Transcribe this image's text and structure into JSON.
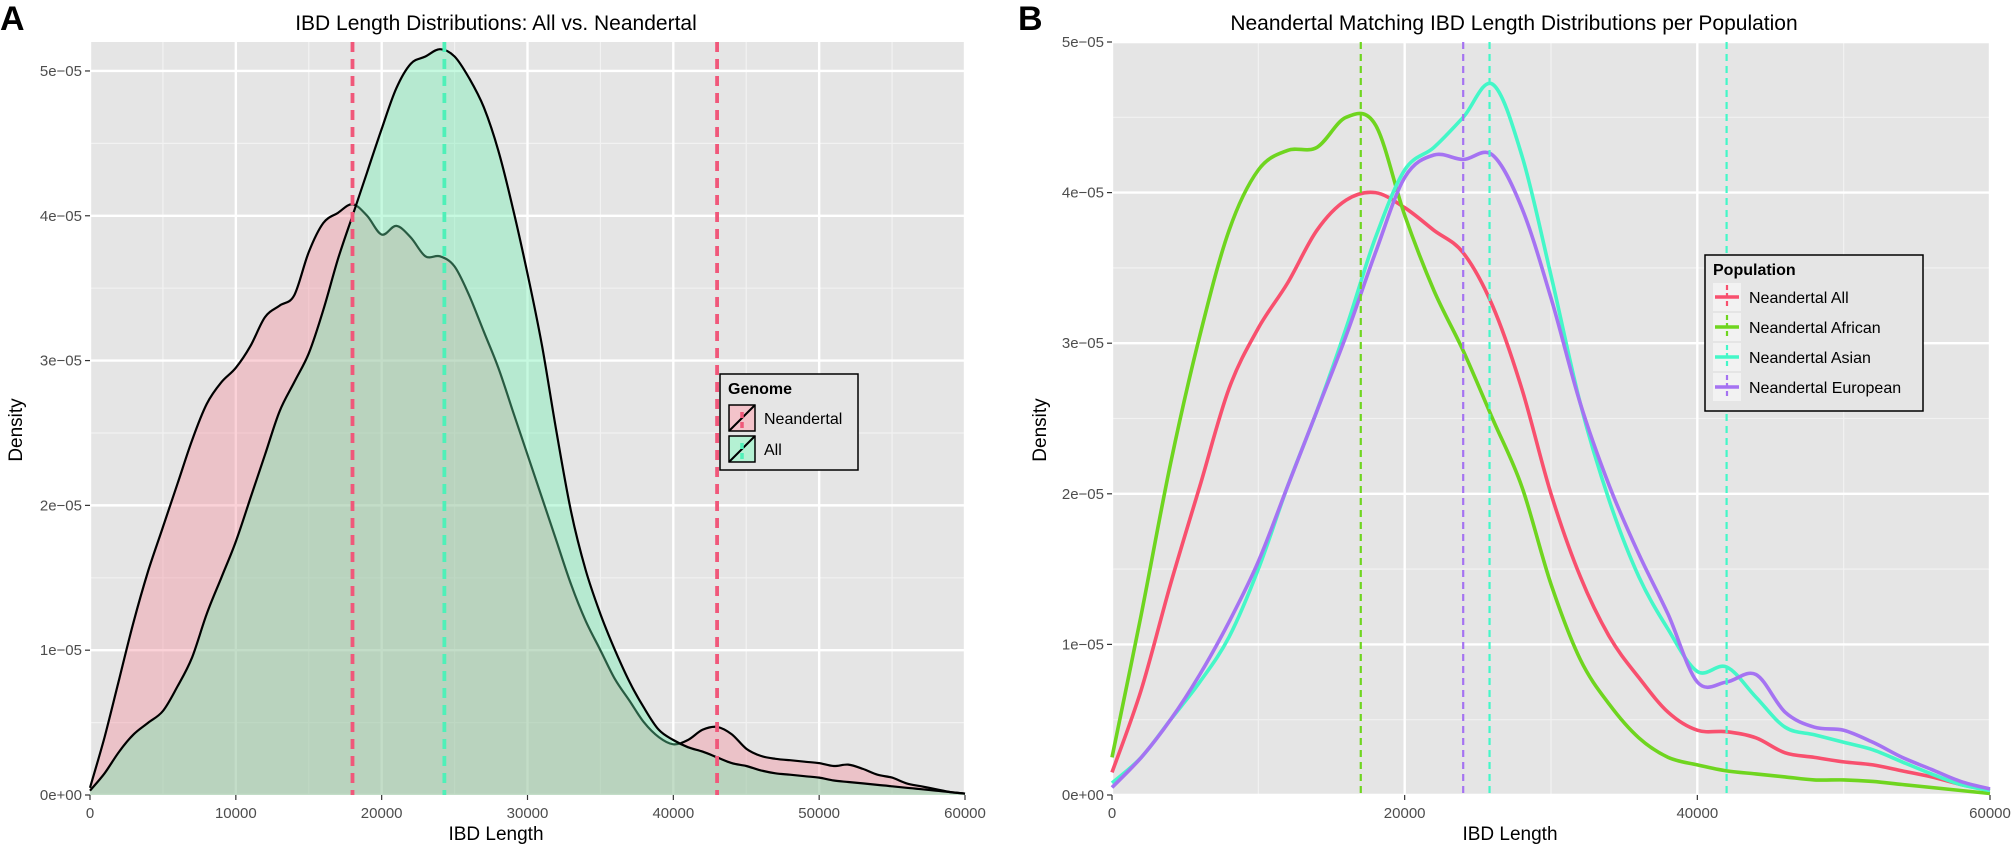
{
  "chart_data": [
    {
      "panel_label": "A",
      "type": "area",
      "title": "IBD Length Distributions: All vs. Neandertal",
      "xlabel": "IBD Length",
      "ylabel": "Density",
      "xlim": [
        0,
        60000
      ],
      "ylim": [
        0,
        5.2e-05
      ],
      "x_ticks": [
        0,
        10000,
        20000,
        30000,
        40000,
        50000,
        60000
      ],
      "x_tick_labels": [
        "0",
        "10000",
        "20000",
        "30000",
        "40000",
        "50000",
        "60000"
      ],
      "y_ticks": [
        0,
        1e-05,
        2e-05,
        3e-05,
        4e-05,
        5e-05
      ],
      "y_tick_labels": [
        "0e+00",
        "1e−05",
        "2e−05",
        "3e−05",
        "4e−05",
        "5e−05"
      ],
      "grid": true,
      "legend": {
        "title": "Genome",
        "position": "right"
      },
      "series": [
        {
          "name": "Neandertal",
          "color": "#f58a99",
          "x": [
            0,
            1000,
            2000,
            3000,
            4000,
            5000,
            6000,
            7000,
            8000,
            9000,
            10000,
            11000,
            12000,
            13000,
            14000,
            15000,
            16000,
            17000,
            18000,
            19000,
            20000,
            21000,
            22000,
            23000,
            24000,
            25000,
            26000,
            27000,
            28000,
            29000,
            30000,
            31000,
            32000,
            33000,
            34000,
            35000,
            36000,
            37000,
            38000,
            39000,
            40000,
            41000,
            42000,
            43000,
            44000,
            45000,
            46000,
            47000,
            48000,
            49000,
            50000,
            51000,
            52000,
            53000,
            54000,
            55000,
            56000,
            57000,
            58000,
            59000,
            60000
          ],
          "y": [
            5e-07,
            4e-06,
            8e-06,
            1.2e-05,
            1.55e-05,
            1.85e-05,
            2.15e-05,
            2.45e-05,
            2.7e-05,
            2.85e-05,
            2.95e-05,
            3.1e-05,
            3.3e-05,
            3.38e-05,
            3.45e-05,
            3.75e-05,
            3.95e-05,
            4.02e-05,
            4.08e-05,
            4e-05,
            3.87e-05,
            3.93e-05,
            3.85e-05,
            3.72e-05,
            3.72e-05,
            3.65e-05,
            3.45e-05,
            3.2e-05,
            2.95e-05,
            2.65e-05,
            2.35e-05,
            2.05e-05,
            1.75e-05,
            1.45e-05,
            1.2e-05,
            1e-05,
            8e-06,
            6.5e-06,
            5e-06,
            4e-06,
            3.5e-06,
            3.8e-06,
            4.5e-06,
            4.7e-06,
            4.2e-06,
            3.2e-06,
            2.7e-06,
            2.5e-06,
            2.4e-06,
            2.3e-06,
            2.2e-06,
            2e-06,
            2.1e-06,
            1.8e-06,
            1.4e-06,
            1.2e-06,
            8e-07,
            6e-07,
            4e-07,
            2e-07,
            1e-07
          ]
        },
        {
          "name": "All",
          "color": "#69f0ae",
          "x": [
            0,
            1000,
            2000,
            3000,
            4000,
            5000,
            6000,
            7000,
            8000,
            9000,
            10000,
            11000,
            12000,
            13000,
            14000,
            15000,
            16000,
            17000,
            18000,
            19000,
            20000,
            21000,
            22000,
            23000,
            24000,
            25000,
            26000,
            27000,
            28000,
            29000,
            30000,
            31000,
            32000,
            33000,
            34000,
            35000,
            36000,
            37000,
            38000,
            39000,
            40000,
            41000,
            42000,
            43000,
            44000,
            45000,
            46000,
            47000,
            48000,
            49000,
            50000,
            51000,
            52000,
            53000,
            54000,
            55000,
            56000,
            57000,
            58000,
            59000,
            60000
          ],
          "y": [
            3e-07,
            1.5e-06,
            3e-06,
            4.2e-06,
            5e-06,
            5.8e-06,
            7.5e-06,
            9.5e-06,
            1.25e-05,
            1.5e-05,
            1.75e-05,
            2.05e-05,
            2.35e-05,
            2.65e-05,
            2.85e-05,
            3.05e-05,
            3.35e-05,
            3.7e-05,
            4e-05,
            4.3e-05,
            4.6e-05,
            4.88e-05,
            5.05e-05,
            5.1e-05,
            5.15e-05,
            5.1e-05,
            4.95e-05,
            4.75e-05,
            4.45e-05,
            4.05e-05,
            3.6e-05,
            3.1e-05,
            2.5e-05,
            1.95e-05,
            1.55e-05,
            1.25e-05,
            1e-05,
            7.8e-06,
            6e-06,
            4.5e-06,
            3.8e-06,
            3.3e-06,
            3e-06,
            2.6e-06,
            2.2e-06,
            2e-06,
            1.7e-06,
            1.5e-06,
            1.4e-06,
            1.3e-06,
            1.2e-06,
            1e-06,
            9e-07,
            8e-07,
            7e-07,
            6e-07,
            5e-07,
            4e-07,
            3e-07,
            2e-07,
            1e-07
          ]
        }
      ],
      "vlines": [
        {
          "x": 18000,
          "color": "#f0587a"
        },
        {
          "x": 24300,
          "color": "#4ff0b8"
        },
        {
          "x": 43000,
          "color": "#f0587a"
        }
      ]
    },
    {
      "panel_label": "B",
      "type": "line",
      "title": "Neandertal Matching IBD Length Distributions per Population",
      "xlabel": "IBD Length",
      "ylabel": "Density",
      "xlim": [
        0,
        60000
      ],
      "ylim": [
        0,
        5e-05
      ],
      "x_ticks": [
        0,
        20000,
        40000,
        60000
      ],
      "x_tick_labels": [
        "0",
        "20000",
        "40000",
        "60000"
      ],
      "y_ticks": [
        0,
        1e-05,
        2e-05,
        3e-05,
        4e-05,
        5e-05
      ],
      "y_tick_labels": [
        "0e+00",
        "1e−05",
        "2e−05",
        "3e−05",
        "4e−05",
        "5e−05"
      ],
      "grid": true,
      "legend": {
        "title": "Population",
        "position": "right"
      },
      "series": [
        {
          "name": "Neandertal All",
          "color": "#f8506e",
          "x": [
            0,
            2000,
            4000,
            6000,
            8000,
            10000,
            12000,
            14000,
            16000,
            18000,
            20000,
            22000,
            24000,
            26000,
            28000,
            30000,
            32000,
            34000,
            36000,
            38000,
            40000,
            42000,
            44000,
            46000,
            48000,
            50000,
            52000,
            54000,
            56000,
            58000,
            60000
          ],
          "y": [
            1.5e-06,
            7e-06,
            1.4e-05,
            2.05e-05,
            2.7e-05,
            3.1e-05,
            3.4e-05,
            3.75e-05,
            3.95e-05,
            4e-05,
            3.9e-05,
            3.75e-05,
            3.6e-05,
            3.25e-05,
            2.7e-05,
            2e-05,
            1.45e-05,
            1.05e-05,
            7.8e-06,
            5.5e-06,
            4.3e-06,
            4.2e-06,
            3.8e-06,
            2.8e-06,
            2.5e-06,
            2.2e-06,
            2e-06,
            1.6e-06,
            1.2e-06,
            7e-07,
            3e-07
          ]
        },
        {
          "name": "Neandertal African",
          "color": "#6fd51f",
          "x": [
            0,
            2000,
            4000,
            6000,
            8000,
            10000,
            12000,
            14000,
            16000,
            18000,
            20000,
            22000,
            24000,
            26000,
            28000,
            30000,
            32000,
            34000,
            36000,
            38000,
            40000,
            42000,
            44000,
            46000,
            48000,
            50000,
            52000,
            54000,
            56000,
            58000,
            60000
          ],
          "y": [
            2.5e-06,
            1.2e-05,
            2.2e-05,
            3.05e-05,
            3.75e-05,
            4.15e-05,
            4.28e-05,
            4.3e-05,
            4.5e-05,
            4.45e-05,
            3.85e-05,
            3.35e-05,
            2.95e-05,
            2.5e-05,
            2.05e-05,
            1.4e-05,
            9e-06,
            6e-06,
            3.8e-06,
            2.5e-06,
            2e-06,
            1.6e-06,
            1.4e-06,
            1.2e-06,
            1e-06,
            1e-06,
            9e-07,
            7e-07,
            5e-07,
            3e-07,
            1e-07
          ]
        },
        {
          "name": "Neandertal Asian",
          "color": "#44f7c8",
          "x": [
            0,
            2000,
            4000,
            6000,
            8000,
            10000,
            12000,
            14000,
            16000,
            18000,
            20000,
            22000,
            24000,
            26000,
            28000,
            30000,
            32000,
            34000,
            36000,
            38000,
            40000,
            42000,
            44000,
            46000,
            48000,
            50000,
            52000,
            54000,
            56000,
            58000,
            60000
          ],
          "y": [
            8e-07,
            2.5e-06,
            5e-06,
            7.5e-06,
            1.05e-05,
            1.5e-05,
            2.05e-05,
            2.55e-05,
            3.1e-05,
            3.7e-05,
            4.15e-05,
            4.3e-05,
            4.5e-05,
            4.72e-05,
            4.25e-05,
            3.45e-05,
            2.6e-05,
            1.95e-05,
            1.45e-05,
            1.1e-05,
            8.2e-06,
            8.5e-06,
            6.5e-06,
            4.5e-06,
            4e-06,
            3.5e-06,
            3e-06,
            2.2e-06,
            1.4e-06,
            7e-07,
            3e-07
          ]
        },
        {
          "name": "Neandertal European",
          "color": "#a573f2",
          "x": [
            0,
            2000,
            4000,
            6000,
            8000,
            10000,
            12000,
            14000,
            16000,
            18000,
            20000,
            22000,
            24000,
            26000,
            28000,
            30000,
            32000,
            34000,
            36000,
            38000,
            40000,
            42000,
            44000,
            46000,
            48000,
            50000,
            52000,
            54000,
            56000,
            58000,
            60000
          ],
          "y": [
            5e-07,
            2.5e-06,
            5e-06,
            8e-06,
            1.15e-05,
            1.55e-05,
            2.05e-05,
            2.55e-05,
            3.05e-05,
            3.6e-05,
            4.1e-05,
            4.25e-05,
            4.22e-05,
            4.25e-05,
            3.9e-05,
            3.3e-05,
            2.6e-05,
            2.05e-05,
            1.6e-05,
            1.2e-05,
            7.5e-06,
            7.5e-06,
            8e-06,
            5.5e-06,
            4.5e-06,
            4.3e-06,
            3.5e-06,
            2.5e-06,
            1.7e-06,
            9e-07,
            4e-07
          ]
        }
      ],
      "vlines": [
        {
          "x": 17000,
          "color": "#6fd51f"
        },
        {
          "x": 24000,
          "color": "#a573f2"
        },
        {
          "x": 25800,
          "color": "#44f7c8"
        },
        {
          "x": 42000,
          "color": "#44f7c8"
        }
      ]
    }
  ]
}
